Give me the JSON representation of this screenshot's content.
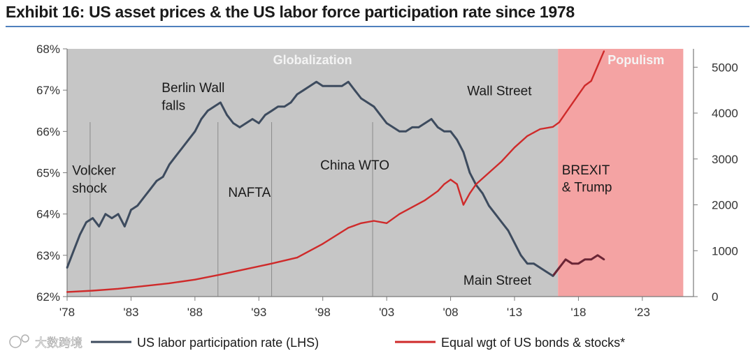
{
  "title": "Exhibit 16: US asset prices & the US labor force participation rate since 1978",
  "watermark": "大数跨境",
  "colors": {
    "background": "#ffffff",
    "plot_area": "#c6c6c6",
    "populism_band": "#f4a3a3",
    "participation_line": "#3d4b5e",
    "participation_line_populism": "#6a2535",
    "asset_line": "#cf2a2a",
    "title_rule": "#4f80bd",
    "event_line": "#8a8a8a"
  },
  "chart_data": {
    "type": "line",
    "title": "Exhibit 16: US asset prices & the US labor force participation rate since 1978",
    "x_tick_labels": [
      "'78",
      "'83",
      "'88",
      "'93",
      "'98",
      "'03",
      "'08",
      "'13",
      "'18",
      "'23"
    ],
    "x_ticks": [
      1978,
      1983,
      1988,
      1993,
      1998,
      2003,
      2008,
      2013,
      2018,
      2023
    ],
    "xlim": [
      1978,
      2027
    ],
    "y_left": {
      "label": "US labor participation rate (LHS)",
      "lim": [
        62,
        68
      ],
      "ticks": [
        62,
        63,
        64,
        65,
        66,
        67,
        68
      ],
      "tick_labels": [
        "62%",
        "63%",
        "64%",
        "65%",
        "66%",
        "67%",
        "68%"
      ]
    },
    "y_right": {
      "label": "Equal wgt of US bonds & stocks*",
      "lim": [
        0,
        5400
      ],
      "ticks": [
        0,
        1000,
        2000,
        3000,
        4000,
        5000
      ],
      "tick_labels": [
        "0",
        "1000",
        "2000",
        "3000",
        "4000",
        "5000"
      ]
    },
    "bands": [
      {
        "label": "Globalization",
        "from": 1978,
        "to": 2016.4
      },
      {
        "label": "Populism",
        "from": 2016.4,
        "to": 2026.2
      }
    ],
    "event_lines": [
      {
        "label": "Volcker shock",
        "x": 1979.8
      },
      {
        "label": "Berlin Wall falls",
        "x": 1989.8
      },
      {
        "label": "NAFTA",
        "x": 1994.0
      },
      {
        "label": "China WTO",
        "x": 2001.9
      }
    ],
    "annotations": [
      {
        "text": "Volcker",
        "x": 1978.4,
        "y": 64.95
      },
      {
        "text": "shock",
        "x": 1978.4,
        "y": 64.52
      },
      {
        "text": "Berlin Wall",
        "x": 1985.4,
        "y": 66.95
      },
      {
        "text": "falls",
        "x": 1985.4,
        "y": 66.52
      },
      {
        "text": "NAFTA",
        "x": 1990.6,
        "y": 64.42
      },
      {
        "text": "China WTO",
        "x": 1997.8,
        "y": 65.08
      },
      {
        "text": "Wall Street",
        "x": 2009.3,
        "y": 66.88
      },
      {
        "text": "Main Street",
        "x": 2009.0,
        "y": 62.29
      },
      {
        "text": "BREXIT",
        "x": 2016.7,
        "y": 64.96
      },
      {
        "text": "& Trump",
        "x": 2016.7,
        "y": 64.54
      }
    ],
    "series": [
      {
        "name": "US labor participation rate (LHS)",
        "axis": "left",
        "x": [
          1978.0,
          1978.5,
          1979.0,
          1979.5,
          1980.0,
          1980.5,
          1981.0,
          1981.5,
          1982.0,
          1982.5,
          1983.0,
          1983.5,
          1984.0,
          1984.5,
          1985.0,
          1985.5,
          1986.0,
          1986.5,
          1987.0,
          1987.5,
          1988.0,
          1988.5,
          1989.0,
          1989.5,
          1990.0,
          1990.5,
          1991.0,
          1991.5,
          1992.0,
          1992.5,
          1993.0,
          1993.5,
          1994.0,
          1994.5,
          1995.0,
          1995.5,
          1996.0,
          1996.5,
          1997.0,
          1997.5,
          1998.0,
          1998.5,
          1999.0,
          1999.5,
          2000.0,
          2000.5,
          2001.0,
          2001.5,
          2002.0,
          2002.5,
          2003.0,
          2003.5,
          2004.0,
          2004.5,
          2005.0,
          2005.5,
          2006.0,
          2006.5,
          2007.0,
          2007.5,
          2008.0,
          2008.5,
          2009.0,
          2009.5,
          2010.0,
          2010.5,
          2011.0,
          2011.5,
          2012.0,
          2012.5,
          2013.0,
          2013.5,
          2014.0,
          2014.5,
          2015.0,
          2015.5,
          2016.0,
          2016.5,
          2017.0,
          2017.5,
          2018.0,
          2018.5,
          2019.0,
          2019.5,
          2020.0
        ],
        "values": [
          62.7,
          63.1,
          63.5,
          63.8,
          63.9,
          63.7,
          64.0,
          63.9,
          64.0,
          63.7,
          64.1,
          64.2,
          64.4,
          64.6,
          64.8,
          64.9,
          65.2,
          65.4,
          65.6,
          65.8,
          66.0,
          66.3,
          66.5,
          66.6,
          66.7,
          66.4,
          66.2,
          66.1,
          66.2,
          66.3,
          66.2,
          66.4,
          66.5,
          66.6,
          66.6,
          66.7,
          66.9,
          67.0,
          67.1,
          67.2,
          67.1,
          67.1,
          67.1,
          67.1,
          67.2,
          67.0,
          66.8,
          66.7,
          66.6,
          66.4,
          66.2,
          66.1,
          66.0,
          66.0,
          66.1,
          66.1,
          66.2,
          66.3,
          66.1,
          66.0,
          66.0,
          65.8,
          65.5,
          65.0,
          64.7,
          64.5,
          64.2,
          64.0,
          63.8,
          63.6,
          63.3,
          63.0,
          62.8,
          62.8,
          62.7,
          62.6,
          62.5,
          62.7,
          62.9,
          62.8,
          62.8,
          62.9,
          62.9,
          63.0,
          62.9
        ]
      },
      {
        "name": "Equal wgt of US bonds & stocks*",
        "axis": "right",
        "x": [
          1978,
          1980,
          1982,
          1984,
          1986,
          1988,
          1990,
          1992,
          1994,
          1996,
          1998,
          2000,
          2001,
          2002,
          2003,
          2004,
          2005,
          2006,
          2007,
          2007.5,
          2008,
          2008.5,
          2009,
          2009.5,
          2010,
          2011,
          2012,
          2013,
          2014,
          2015,
          2016,
          2016.5,
          2017,
          2018,
          2018.5,
          2019,
          2020
        ],
        "values": [
          100,
          130,
          170,
          230,
          290,
          370,
          480,
          600,
          720,
          850,
          1150,
          1500,
          1600,
          1650,
          1600,
          1800,
          1950,
          2100,
          2300,
          2450,
          2550,
          2450,
          2000,
          2250,
          2450,
          2700,
          2950,
          3250,
          3500,
          3650,
          3700,
          3800,
          4000,
          4400,
          4600,
          4700,
          5350
        ]
      }
    ]
  },
  "legend": [
    {
      "label": "US labor participation rate (LHS)",
      "color": "#3d4b5e"
    },
    {
      "label": "Equal wgt of US bonds & stocks*",
      "color": "#cf2a2a"
    }
  ]
}
